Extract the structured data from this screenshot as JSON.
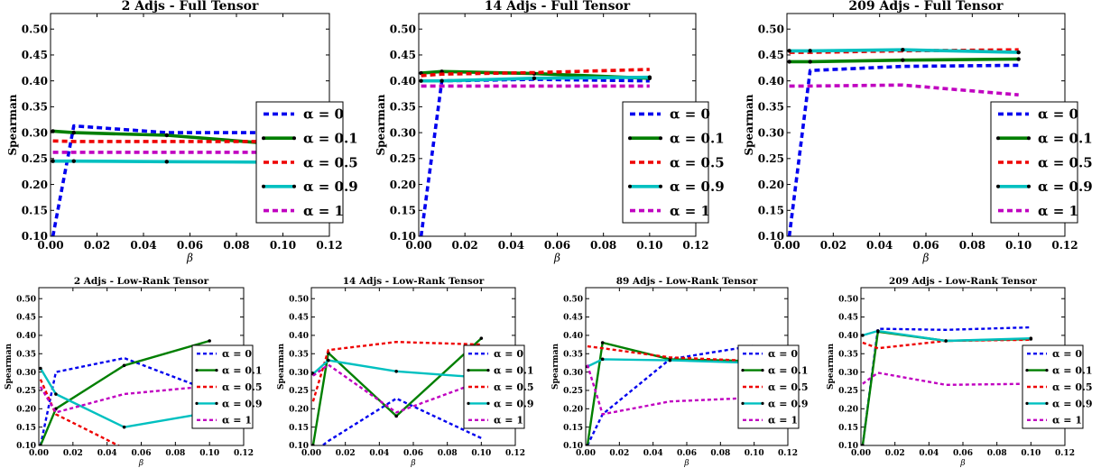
{
  "chart_data": [
    {
      "type": "line",
      "title": "2 Adjs - Full Tensor",
      "xlabel": "β",
      "ylabel": "Spearman",
      "xlim": [
        0,
        0.12
      ],
      "ylim": [
        0.1,
        0.53
      ],
      "xticks": [
        "0.00",
        "0.02",
        "0.04",
        "0.06",
        "0.08",
        "0.10",
        "0.12"
      ],
      "yticks": [
        "0.10",
        "0.15",
        "0.20",
        "0.25",
        "0.30",
        "0.35",
        "0.40",
        "0.45",
        "0.50"
      ],
      "legend_position": "right",
      "x": [
        0.001,
        0.01,
        0.05,
        0.1
      ],
      "series": [
        {
          "name": "α = 0",
          "values": [
            0.1,
            0.313,
            0.3,
            0.3
          ]
        },
        {
          "name": "α = 0.1",
          "values": [
            0.303,
            0.3,
            0.295,
            0.277
          ]
        },
        {
          "name": "α = 0.5",
          "values": [
            0.284,
            0.283,
            0.283,
            0.283
          ]
        },
        {
          "name": "α = 0.9",
          "values": [
            0.245,
            0.245,
            0.244,
            0.243
          ]
        },
        {
          "name": "α = 1",
          "values": [
            0.262,
            0.262,
            0.262,
            0.262
          ]
        }
      ]
    },
    {
      "type": "line",
      "title": "14 Adjs - Full Tensor",
      "xlabel": "β",
      "ylabel": "Spearman",
      "xlim": [
        0,
        0.12
      ],
      "ylim": [
        0.1,
        0.53
      ],
      "xticks": [
        "0.00",
        "0.02",
        "0.04",
        "0.06",
        "0.08",
        "0.10",
        "0.12"
      ],
      "yticks": [
        "0.10",
        "0.15",
        "0.20",
        "0.25",
        "0.30",
        "0.35",
        "0.40",
        "0.45",
        "0.50"
      ],
      "legend_position": "right",
      "x": [
        0.001,
        0.01,
        0.05,
        0.1
      ],
      "series": [
        {
          "name": "α = 0",
          "values": [
            0.1,
            0.4,
            0.403,
            0.4
          ]
        },
        {
          "name": "α = 0.1",
          "values": [
            0.415,
            0.418,
            0.414,
            0.405
          ]
        },
        {
          "name": "α = 0.5",
          "values": [
            0.41,
            0.413,
            0.416,
            0.422
          ]
        },
        {
          "name": "α = 0.9",
          "values": [
            0.4,
            0.4,
            0.405,
            0.407
          ]
        },
        {
          "name": "α = 1",
          "values": [
            0.39,
            0.39,
            0.39,
            0.39
          ]
        }
      ]
    },
    {
      "type": "line",
      "title": "209 Adjs - Full Tensor",
      "xlabel": "β",
      "ylabel": "Spearman",
      "xlim": [
        0,
        0.12
      ],
      "ylim": [
        0.1,
        0.53
      ],
      "xticks": [
        "0.00",
        "0.02",
        "0.04",
        "0.06",
        "0.08",
        "0.10",
        "0.12"
      ],
      "yticks": [
        "0.10",
        "0.15",
        "0.20",
        "0.25",
        "0.30",
        "0.35",
        "0.40",
        "0.45",
        "0.50"
      ],
      "legend_position": "right",
      "x": [
        0.001,
        0.01,
        0.05,
        0.1
      ],
      "series": [
        {
          "name": "α = 0",
          "values": [
            0.1,
            0.42,
            0.428,
            0.43
          ]
        },
        {
          "name": "α = 0.1",
          "values": [
            0.437,
            0.437,
            0.44,
            0.442
          ]
        },
        {
          "name": "α = 0.5",
          "values": [
            0.455,
            0.455,
            0.458,
            0.46
          ]
        },
        {
          "name": "α = 0.9",
          "values": [
            0.458,
            0.458,
            0.46,
            0.455
          ]
        },
        {
          "name": "α = 1",
          "values": [
            0.39,
            0.39,
            0.392,
            0.373
          ]
        }
      ]
    },
    {
      "type": "line",
      "title": "2 Adjs - Low-Rank Tensor",
      "xlabel": "β",
      "ylabel": "Spearman",
      "xlim": [
        0,
        0.12
      ],
      "ylim": [
        0.1,
        0.53
      ],
      "xticks": [
        "0.00",
        "0.02",
        "0.04",
        "0.06",
        "0.08",
        "0.10",
        "0.12"
      ],
      "yticks": [
        "0.10",
        "0.15",
        "0.20",
        "0.25",
        "0.30",
        "0.35",
        "0.40",
        "0.45",
        "0.50"
      ],
      "legend_position": "right",
      "x": [
        0.001,
        0.01,
        0.05,
        0.1
      ],
      "series": [
        {
          "name": "α = 0",
          "values": [
            0.1,
            0.3,
            0.338,
            0.25
          ]
        },
        {
          "name": "α = 0.1",
          "values": [
            0.1,
            0.2,
            0.318,
            0.385
          ]
        },
        {
          "name": "α = 0.5",
          "values": [
            0.28,
            0.185,
            0.092,
            0.092
          ]
        },
        {
          "name": "α = 0.9",
          "values": [
            0.31,
            0.24,
            0.15,
            0.19
          ]
        },
        {
          "name": "α = 1",
          "values": [
            0.26,
            0.19,
            0.24,
            0.262
          ]
        }
      ]
    },
    {
      "type": "line",
      "title": "14 Adjs - Low-Rank Tensor",
      "xlabel": "β",
      "ylabel": "Spearman",
      "xlim": [
        0,
        0.12
      ],
      "ylim": [
        0.1,
        0.53
      ],
      "xticks": [
        "0.00",
        "0.02",
        "0.04",
        "0.06",
        "0.08",
        "0.10",
        "0.12"
      ],
      "yticks": [
        "0.10",
        "0.15",
        "0.20",
        "0.25",
        "0.30",
        "0.35",
        "0.40",
        "0.45",
        "0.50"
      ],
      "legend_position": "right",
      "x": [
        0.001,
        0.01,
        0.05,
        0.1
      ],
      "series": [
        {
          "name": "α = 0",
          "values": [
            0.08,
            0.112,
            0.228,
            0.12
          ]
        },
        {
          "name": "α = 0.1",
          "values": [
            0.1,
            0.352,
            0.18,
            0.392
          ]
        },
        {
          "name": "α = 0.5",
          "values": [
            0.22,
            0.36,
            0.382,
            0.375
          ]
        },
        {
          "name": "α = 0.9",
          "values": [
            0.295,
            0.332,
            0.302,
            0.285
          ]
        },
        {
          "name": "α = 1",
          "values": [
            0.29,
            0.32,
            0.19,
            0.275
          ]
        }
      ]
    },
    {
      "type": "line",
      "title": "89 Adjs - Low-Rank Tensor",
      "xlabel": "β",
      "ylabel": "Spearman",
      "xlim": [
        0,
        0.12
      ],
      "ylim": [
        0.1,
        0.53
      ],
      "xticks": [
        "0.00",
        "0.02",
        "0.04",
        "0.06",
        "0.08",
        "0.10",
        "0.12"
      ],
      "yticks": [
        "0.10",
        "0.15",
        "0.20",
        "0.25",
        "0.30",
        "0.35",
        "0.40",
        "0.45",
        "0.50"
      ],
      "legend_position": "right",
      "x": [
        0.001,
        0.01,
        0.05,
        0.1
      ],
      "series": [
        {
          "name": "α = 0",
          "values": [
            0.1,
            0.185,
            0.335,
            0.372
          ]
        },
        {
          "name": "α = 0.1",
          "values": [
            0.1,
            0.38,
            0.335,
            0.33
          ]
        },
        {
          "name": "α = 0.5",
          "values": [
            0.37,
            0.365,
            0.34,
            0.33
          ]
        },
        {
          "name": "α = 0.9",
          "values": [
            0.315,
            0.335,
            0.332,
            0.325
          ]
        },
        {
          "name": "α = 1",
          "values": [
            0.32,
            0.185,
            0.22,
            0.23
          ]
        }
      ]
    },
    {
      "type": "line",
      "title": "209 Adjs - Low-Rank Tensor",
      "xlabel": "β",
      "ylabel": "Spearman",
      "xlim": [
        0,
        0.12
      ],
      "ylim": [
        0.1,
        0.53
      ],
      "xticks": [
        "0.00",
        "0.02",
        "0.04",
        "0.06",
        "0.08",
        "0.10",
        "0.12"
      ],
      "yticks": [
        "0.10",
        "0.15",
        "0.20",
        "0.25",
        "0.30",
        "0.35",
        "0.40",
        "0.45",
        "0.50"
      ],
      "legend_position": "right",
      "x": [
        0.001,
        0.01,
        0.05,
        0.1
      ],
      "series": [
        {
          "name": "α = 0",
          "values": [
            0.1,
            0.418,
            0.415,
            0.422
          ]
        },
        {
          "name": "α = 0.1",
          "values": [
            0.1,
            0.41,
            0.385,
            0.39
          ]
        },
        {
          "name": "α = 0.5",
          "values": [
            0.38,
            0.365,
            0.385,
            0.388
          ]
        },
        {
          "name": "α = 0.9",
          "values": [
            0.4,
            0.412,
            0.385,
            0.392
          ]
        },
        {
          "name": "α = 1",
          "values": [
            0.268,
            0.298,
            0.265,
            0.268
          ]
        }
      ]
    }
  ],
  "series_styles": [
    {
      "color": "#0000ee",
      "dash": "dashed",
      "markers": false
    },
    {
      "color": "#007f00",
      "dash": "solid",
      "markers": true
    },
    {
      "color": "#ee0000",
      "dash": "dashed",
      "markers": false
    },
    {
      "color": "#00c0c0",
      "dash": "solid",
      "markers": true
    },
    {
      "color": "#c000c0",
      "dash": "dashed",
      "markers": false
    }
  ]
}
